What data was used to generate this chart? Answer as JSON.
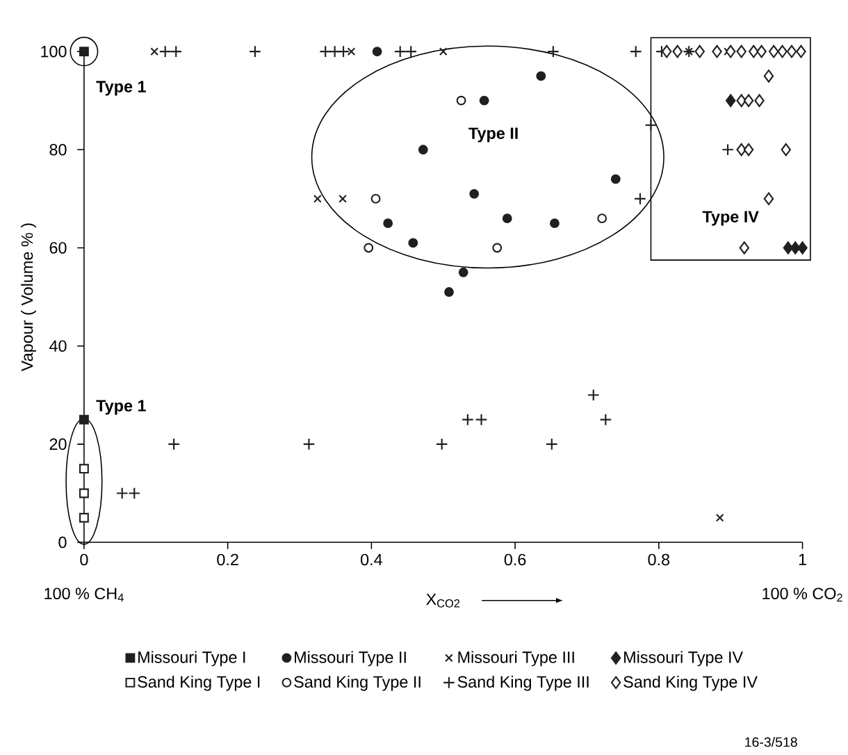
{
  "chart_data": {
    "type": "scatter",
    "xlabel": "X$_{CO2}$",
    "ylabel": "Vapour ( Volume % )",
    "xlim": [
      0,
      1
    ],
    "ylim": [
      0,
      100
    ],
    "xticks": [
      0,
      0.2,
      0.4,
      0.6,
      0.8,
      1
    ],
    "yticks": [
      0,
      20,
      40,
      60,
      80,
      100
    ],
    "grid": false,
    "legend": "bottom",
    "series": [
      {
        "name": "Missouri Type I",
        "color": "#231f20",
        "marker": "square",
        "x": [
          0,
          0
        ],
        "values": [
          100,
          25
        ]
      },
      {
        "name": "Missouri Type II",
        "color": "#231f20",
        "marker": "circle",
        "x": [
          0.408,
          0.636,
          0.557,
          0.472,
          0.74,
          0.543,
          0.423,
          0.589,
          0.655,
          0.458,
          0.528,
          0.508
        ],
        "values": [
          100,
          95,
          90,
          80,
          74,
          71,
          65,
          66,
          65,
          61,
          55,
          51
        ]
      },
      {
        "name": "Missouri Type III",
        "color": "#231f20",
        "marker": "cross",
        "x": [
          0.098,
          0.372,
          0.5,
          0.842,
          0.896,
          0.325,
          0.36,
          0.885
        ],
        "values": [
          100,
          100,
          100,
          100,
          100,
          70,
          70,
          5
        ]
      },
      {
        "name": "Missouri Type IV",
        "color": "#231f20",
        "marker": "diamond",
        "x": [
          0.9,
          0.98,
          0.99,
          1.0
        ],
        "values": [
          90,
          60,
          60,
          60
        ]
      },
      {
        "name": "Sand King Type I",
        "color": "#ffffff",
        "marker": "square",
        "x": [
          0,
          0,
          0
        ],
        "values": [
          15,
          10,
          5
        ]
      },
      {
        "name": "Sand King Type II",
        "color": "#ffffff",
        "marker": "circle",
        "x": [
          0.525,
          0.406,
          0.396,
          0.575,
          0.721
        ],
        "values": [
          90,
          70,
          60,
          60,
          66
        ]
      },
      {
        "name": "Sand King Type III",
        "color": "#231f20",
        "marker": "plus",
        "x": [
          0.113,
          0.128,
          0.238,
          0.336,
          0.349,
          0.361,
          0.44,
          0.455,
          0.653,
          0.768,
          0.804,
          0.842,
          0.789,
          0.774,
          0.896,
          0.125,
          0.313,
          0.498,
          0.053,
          0.07,
          0.534,
          0.553,
          0.651,
          0.709,
          0.726
        ],
        "values": [
          100,
          100,
          100,
          100,
          100,
          100,
          100,
          100,
          100,
          100,
          100,
          100,
          85,
          70,
          80,
          20,
          20,
          20,
          10,
          10,
          25,
          25,
          20,
          30,
          25
        ]
      },
      {
        "name": "Sand King Type IV",
        "color": "#ffffff",
        "marker": "diamond",
        "x": [
          0.811,
          0.826,
          0.857,
          0.881,
          0.9,
          0.915,
          0.932,
          0.943,
          0.96,
          0.972,
          0.985,
          0.998,
          0.953,
          0.915,
          0.925,
          0.94,
          0.915,
          0.925,
          0.977,
          0.953,
          0.919
        ],
        "values": [
          100,
          100,
          100,
          100,
          100,
          100,
          100,
          100,
          100,
          100,
          100,
          100,
          95,
          90,
          90,
          90,
          80,
          80,
          80,
          70,
          60
        ]
      }
    ],
    "annotations": [
      "Type 1",
      "Type 1",
      "Type II",
      "Type IV",
      "100 % CH$_{4}$",
      "100 % CO$_{2}$",
      "16-3/518"
    ]
  }
}
